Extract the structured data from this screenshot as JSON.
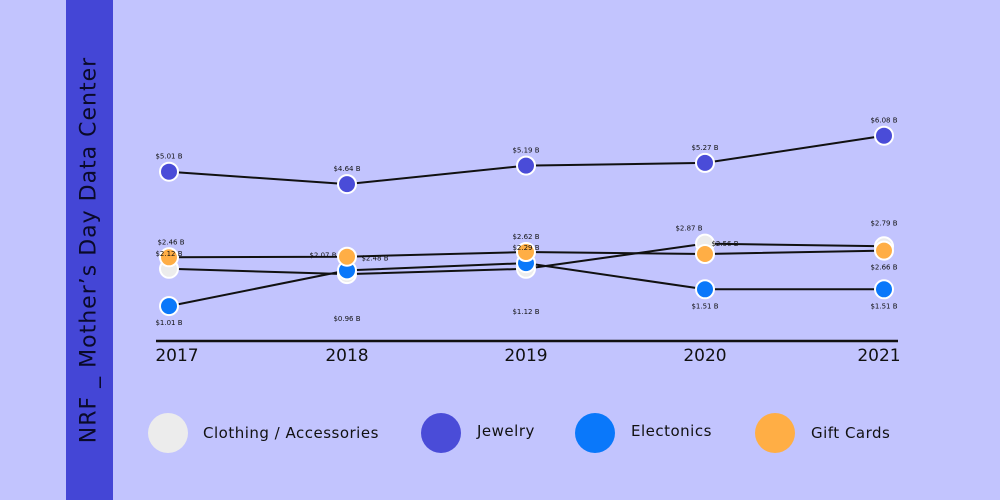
{
  "side_title": "NRF _ Mother’s Day Data Center",
  "colors": {
    "background": "#c2c4fe",
    "band": "#4446d6",
    "line": "#111111"
  },
  "chart_data": {
    "type": "line",
    "x": [
      "2017",
      "2018",
      "2019",
      "2020",
      "2021"
    ],
    "ylim": [
      0,
      7.5
    ],
    "grid": false,
    "legend_position": "bottom",
    "series": [
      {
        "name": "Clothing / Accessories",
        "color": "#ececec",
        "values": [
          2.12,
          1.96,
          2.12,
          2.87,
          2.79
        ],
        "labels": [
          "$2.12 B",
          "",
          "",
          "$2.87 B",
          "$2.79 B"
        ]
      },
      {
        "name": "Jewelry",
        "color": "#4a4cd8",
        "values": [
          5.01,
          4.64,
          5.19,
          5.27,
          6.08
        ],
        "labels": [
          "$5.01 B",
          "$4.64 B",
          "$5.19 B",
          "$5.27 B",
          "$6.08 B"
        ]
      },
      {
        "name": "Electonics",
        "color": "#0a78fa",
        "values": [
          1.01,
          2.07,
          2.29,
          1.51,
          1.51
        ],
        "labels": [
          "$1.01 B",
          "$2.07 B",
          "$2.29 B",
          "$1.51 B",
          "$1.51 B"
        ]
      },
      {
        "name": "Gift Cards",
        "color": "#ffae45",
        "values": [
          2.46,
          2.48,
          2.62,
          2.56,
          2.66
        ],
        "labels": [
          "$2.46 B",
          "$2.48 B",
          "$2.62 B",
          "$2.56 B",
          "$2.66 B"
        ]
      }
    ],
    "annotations": [
      "$0.96 B",
      "$1.12 B"
    ]
  }
}
